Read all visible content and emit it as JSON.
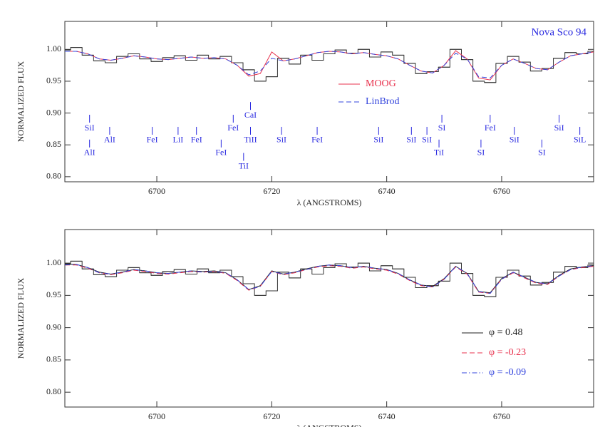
{
  "chart_data": [
    {
      "type": "line",
      "annotation": "Nova Sco 94",
      "annotation_color": "#2a2ae0",
      "xlabel": "λ (ANGSTROMS)",
      "ylabel": "NORMALIZED FLUX",
      "xlim": [
        6684,
        6776
      ],
      "ylim": [
        0.792,
        1.044
      ],
      "xticks": [
        6700,
        6720,
        6740,
        6760
      ],
      "yticks": [
        {
          "value": 0.8,
          "label": "0.80"
        },
        0.85,
        {
          "value": 0.9,
          "label": "0.90"
        },
        0.95,
        {
          "value": 1,
          "label": "1.00"
        }
      ],
      "legend": "center",
      "x": [
        6684,
        6686,
        6688,
        6690,
        6692,
        6694,
        6696,
        6698,
        6700,
        6702,
        6704,
        6706,
        6708,
        6710,
        6712,
        6714,
        6716,
        6718,
        6720,
        6722,
        6724,
        6726,
        6728,
        6730,
        6732,
        6734,
        6736,
        6738,
        6740,
        6742,
        6744,
        6746,
        6748,
        6750,
        6752,
        6754,
        6756,
        6758,
        6760,
        6762,
        6764,
        6766,
        6768,
        6770,
        6772,
        6774,
        6776
      ],
      "series": [
        {
          "style": "steps",
          "color": "#333333",
          "values": [
            0.999,
            1.003,
            0.991,
            0.982,
            0.979,
            0.989,
            0.993,
            0.985,
            0.981,
            0.987,
            0.99,
            0.983,
            0.991,
            0.985,
            0.989,
            0.979,
            0.968,
            0.95,
            0.957,
            0.986,
            0.977,
            0.991,
            0.983,
            0.993,
            0.999,
            0.994,
            1.0,
            0.988,
            0.996,
            0.991,
            0.978,
            0.962,
            0.965,
            0.972,
            1.0,
            0.984,
            0.95,
            0.948,
            0.978,
            0.989,
            0.98,
            0.966,
            0.97,
            0.986,
            0.995,
            0.993,
            0.997
          ]
        },
        {
          "name": "MOOG",
          "style": "solid",
          "color": "#e8304c",
          "values": [
            0.997,
            0.997,
            0.993,
            0.985,
            0.983,
            0.986,
            0.99,
            0.988,
            0.985,
            0.984,
            0.986,
            0.988,
            0.986,
            0.987,
            0.985,
            0.975,
            0.958,
            0.962,
            0.996,
            0.982,
            0.985,
            0.99,
            0.995,
            0.997,
            0.996,
            0.993,
            0.995,
            0.992,
            0.99,
            0.985,
            0.975,
            0.966,
            0.963,
            0.975,
            0.998,
            0.985,
            0.955,
            0.952,
            0.975,
            0.985,
            0.978,
            0.97,
            0.968,
            0.98,
            0.99,
            0.993,
            0.996
          ]
        },
        {
          "name": "LinBrod",
          "style": "dashed",
          "color": "#3344dd",
          "values": [
            0.997,
            0.997,
            0.993,
            0.985,
            0.983,
            0.986,
            0.99,
            0.988,
            0.985,
            0.984,
            0.986,
            0.988,
            0.986,
            0.987,
            0.985,
            0.975,
            0.96,
            0.966,
            0.986,
            0.982,
            0.985,
            0.99,
            0.995,
            0.997,
            0.996,
            0.993,
            0.995,
            0.992,
            0.99,
            0.985,
            0.975,
            0.966,
            0.963,
            0.975,
            0.994,
            0.985,
            0.957,
            0.955,
            0.975,
            0.985,
            0.978,
            0.97,
            0.968,
            0.98,
            0.99,
            0.993,
            0.996
          ]
        }
      ],
      "line_ids": [
        {
          "label": "SiI",
          "wavelength": 6688.3,
          "flux": 0.876
        },
        {
          "label": "AlI",
          "wavelength": 6688.3,
          "flux": 0.837
        },
        {
          "label": "AlI",
          "wavelength": 6691.8,
          "flux": 0.857
        },
        {
          "label": "FeI",
          "wavelength": 6699.2,
          "flux": 0.857
        },
        {
          "label": "LiI",
          "wavelength": 6703.7,
          "flux": 0.857
        },
        {
          "label": "FeI",
          "wavelength": 6706.9,
          "flux": 0.857
        },
        {
          "label": "FeI",
          "wavelength": 6711.2,
          "flux": 0.837
        },
        {
          "label": "FeI",
          "wavelength": 6713.3,
          "flux": 0.876
        },
        {
          "label": "CaI",
          "wavelength": 6716.3,
          "flux": 0.896
        },
        {
          "label": "TiII",
          "wavelength": 6716.3,
          "flux": 0.857
        },
        {
          "label": "TiI",
          "wavelength": 6715.1,
          "flux": 0.816
        },
        {
          "label": "SiI",
          "wavelength": 6721.7,
          "flux": 0.857
        },
        {
          "label": "FeI",
          "wavelength": 6727.9,
          "flux": 0.857
        },
        {
          "label": "SiI",
          "wavelength": 6738.6,
          "flux": 0.857
        },
        {
          "label": "SiI",
          "wavelength": 6744.3,
          "flux": 0.857
        },
        {
          "label": "SiI",
          "wavelength": 6747.0,
          "flux": 0.857
        },
        {
          "label": "SI",
          "wavelength": 6749.6,
          "flux": 0.876
        },
        {
          "label": "TiI",
          "wavelength": 6749.1,
          "flux": 0.837
        },
        {
          "label": "SI",
          "wavelength": 6756.4,
          "flux": 0.837
        },
        {
          "label": "FeI",
          "wavelength": 6758.0,
          "flux": 0.876
        },
        {
          "label": "SiI",
          "wavelength": 6762.2,
          "flux": 0.857
        },
        {
          "label": "SI",
          "wavelength": 6767.0,
          "flux": 0.837
        },
        {
          "label": "SiI",
          "wavelength": 6770.0,
          "flux": 0.876
        },
        {
          "label": "SiL",
          "wavelength": 6773.6,
          "flux": 0.857
        }
      ],
      "line_id_color": "#2a2ae0"
    },
    {
      "type": "line",
      "xlabel": "λ (ANGSTROMS)",
      "ylabel": "NORMALIZED FLUX",
      "xlim": [
        6684,
        6776
      ],
      "ylim": [
        0.777,
        1.052
      ],
      "xticks": [
        6700,
        6720,
        6740,
        6760
      ],
      "yticks": [
        {
          "value": 0.8,
          "label": "0.80"
        },
        0.85,
        {
          "value": 0.9,
          "label": "0.90"
        },
        0.95,
        {
          "value": 1,
          "label": "1.00"
        }
      ],
      "legend": "lower right",
      "x": [
        6684,
        6686,
        6688,
        6690,
        6692,
        6694,
        6696,
        6698,
        6700,
        6702,
        6704,
        6706,
        6708,
        6710,
        6712,
        6714,
        6716,
        6718,
        6720,
        6722,
        6724,
        6726,
        6728,
        6730,
        6732,
        6734,
        6736,
        6738,
        6740,
        6742,
        6744,
        6746,
        6748,
        6750,
        6752,
        6754,
        6756,
        6758,
        6760,
        6762,
        6764,
        6766,
        6768,
        6770,
        6772,
        6774,
        6776
      ],
      "series": [
        {
          "style": "steps",
          "color": "#333333",
          "values": [
            0.999,
            1.003,
            0.991,
            0.982,
            0.979,
            0.989,
            0.993,
            0.985,
            0.981,
            0.987,
            0.99,
            0.983,
            0.991,
            0.985,
            0.989,
            0.979,
            0.968,
            0.95,
            0.957,
            0.986,
            0.977,
            0.991,
            0.983,
            0.993,
            0.999,
            0.994,
            1.0,
            0.988,
            0.996,
            0.991,
            0.978,
            0.962,
            0.965,
            0.972,
            1.0,
            0.984,
            0.95,
            0.948,
            0.978,
            0.989,
            0.98,
            0.966,
            0.97,
            0.986,
            0.995,
            0.993,
            0.997
          ]
        },
        {
          "name": "φ =  0.48",
          "style": "solid",
          "color": "#222222",
          "values": [
            0.998,
            0.998,
            0.993,
            0.986,
            0.983,
            0.986,
            0.99,
            0.988,
            0.985,
            0.984,
            0.986,
            0.988,
            0.987,
            0.988,
            0.985,
            0.974,
            0.959,
            0.965,
            0.988,
            0.983,
            0.986,
            0.991,
            0.995,
            0.997,
            0.996,
            0.993,
            0.995,
            0.992,
            0.99,
            0.984,
            0.974,
            0.966,
            0.964,
            0.976,
            0.995,
            0.984,
            0.956,
            0.954,
            0.976,
            0.986,
            0.978,
            0.97,
            0.968,
            0.981,
            0.991,
            0.994,
            0.996
          ]
        },
        {
          "name": "φ = -0.23",
          "style": "dashed",
          "color": "#e8304c",
          "values": [
            0.997,
            0.997,
            0.992,
            0.985,
            0.982,
            0.985,
            0.989,
            0.987,
            0.984,
            0.983,
            0.985,
            0.987,
            0.986,
            0.987,
            0.984,
            0.973,
            0.958,
            0.964,
            0.987,
            0.982,
            0.985,
            0.99,
            0.994,
            0.996,
            0.995,
            0.992,
            0.994,
            0.991,
            0.989,
            0.983,
            0.973,
            0.965,
            0.963,
            0.975,
            0.994,
            0.983,
            0.955,
            0.953,
            0.975,
            0.985,
            0.977,
            0.969,
            0.967,
            0.98,
            0.99,
            0.993,
            0.995
          ]
        },
        {
          "name": "φ = -0.09",
          "style": "dashdot",
          "color": "#3344dd",
          "values": [
            0.997,
            0.998,
            0.993,
            0.985,
            0.983,
            0.986,
            0.99,
            0.988,
            0.985,
            0.984,
            0.986,
            0.988,
            0.986,
            0.987,
            0.985,
            0.974,
            0.959,
            0.964,
            0.987,
            0.983,
            0.986,
            0.99,
            0.995,
            0.997,
            0.996,
            0.993,
            0.995,
            0.992,
            0.99,
            0.984,
            0.974,
            0.966,
            0.963,
            0.975,
            0.995,
            0.984,
            0.956,
            0.953,
            0.975,
            0.986,
            0.978,
            0.97,
            0.968,
            0.98,
            0.99,
            0.994,
            0.996
          ]
        }
      ]
    }
  ]
}
